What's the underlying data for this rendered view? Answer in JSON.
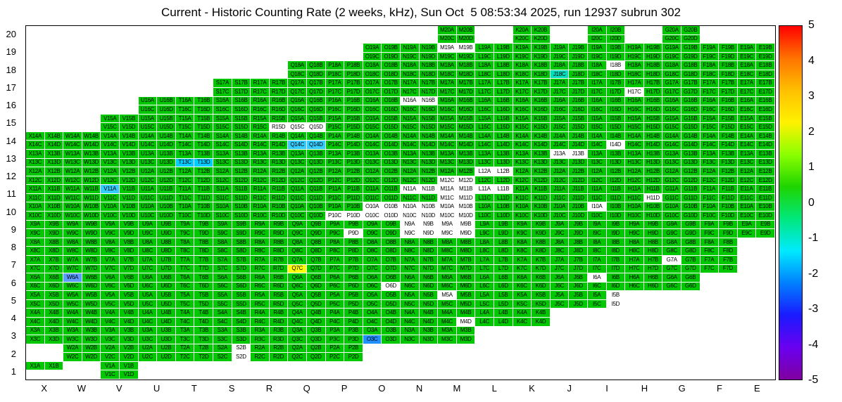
{
  "chart_data": {
    "type": "heatmap",
    "title": "Current - Historic Counting Rate (2 weeks, kHz), Sun Oct  5 08:53:34 2025, run 12937 subrun 302",
    "x_categories": [
      "X",
      "W",
      "V",
      "U",
      "T",
      "S",
      "R",
      "Q",
      "P",
      "O",
      "N",
      "M",
      "L",
      "K",
      "J",
      "I",
      "H",
      "G",
      "F",
      "E"
    ],
    "y_categories": [
      20,
      19,
      18,
      17,
      16,
      15,
      14,
      13,
      12,
      11,
      10,
      9,
      8,
      7,
      6,
      5,
      4,
      3,
      2,
      1
    ],
    "subcell_suffixes": [
      "A",
      "B",
      "C",
      "D"
    ],
    "subcell_layout": "each module cell is split into A (top-left), B (top-right), C (bottom-left), D (bottom-right); label = column letter + row number + suffix",
    "value_scale": {
      "min": -5,
      "max": 5,
      "colorbar_ticks": [
        "5",
        "4",
        "3",
        "2",
        "1",
        "0",
        "-1",
        "-2",
        "-3",
        "-4",
        "-5"
      ]
    },
    "default_value_approx": 0.5,
    "modules_by_row": {
      "20": [
        "M",
        "K",
        "I",
        "G"
      ],
      "19": [
        "O",
        "N",
        "M",
        "L",
        "K",
        "J",
        "I",
        "H",
        "G",
        "F",
        "E"
      ],
      "18": [
        "Q",
        "P",
        "O",
        "N",
        "M",
        "L",
        "K",
        "J",
        "I",
        "H",
        "G",
        "F",
        "E"
      ],
      "17": [
        "S",
        "R",
        "Q",
        "P",
        "O",
        "N",
        "M",
        "L",
        "K",
        "J",
        "I",
        "H",
        "G",
        "F",
        "E"
      ],
      "16": [
        "U",
        "T",
        "S",
        "R",
        "Q",
        "P",
        "O",
        "N",
        "M",
        "L",
        "K",
        "J",
        "I",
        "H",
        "G",
        "F",
        "E"
      ],
      "15": [
        "V",
        "U",
        "T",
        "S",
        "R",
        "Q",
        "P",
        "O",
        "N",
        "M",
        "L",
        "K",
        "J",
        "I",
        "H",
        "G",
        "F",
        "E"
      ],
      "14": [
        "X",
        "W",
        "V",
        "U",
        "T",
        "S",
        "R",
        "Q",
        "P",
        "O",
        "N",
        "M",
        "L",
        "K",
        "J",
        "I",
        "H",
        "G",
        "F",
        "E"
      ],
      "13": [
        "X",
        "W",
        "V",
        "U",
        "T",
        "S",
        "R",
        "Q",
        "P",
        "O",
        "N",
        "M",
        "L",
        "K",
        "J",
        "I",
        "H",
        "G",
        "F",
        "E"
      ],
      "12": [
        "X",
        "W",
        "V",
        "U",
        "T",
        "S",
        "R",
        "Q",
        "P",
        "O",
        "N",
        "M",
        "L",
        "K",
        "J",
        "I",
        "H",
        "G",
        "F",
        "E"
      ],
      "11": [
        "X",
        "W",
        "V",
        "U",
        "T",
        "S",
        "R",
        "Q",
        "P",
        "O",
        "N",
        "M",
        "L",
        "K",
        "J",
        "I",
        "H",
        "G",
        "F",
        "E"
      ],
      "10": [
        "X",
        "W",
        "V",
        "U",
        "T",
        "S",
        "R",
        "Q",
        "P",
        "O",
        "N",
        "M",
        "L",
        "K",
        "J",
        "I",
        "H",
        "G",
        "F",
        "E"
      ],
      "9": [
        "X",
        "W",
        "V",
        "U",
        "T",
        "S",
        "R",
        "Q",
        "P",
        "O",
        "N",
        "M",
        "L",
        "K",
        "J",
        "I",
        "H",
        "G",
        "F",
        "E"
      ],
      "8": [
        "X",
        "W",
        "V",
        "U",
        "T",
        "S",
        "R",
        "Q",
        "P",
        "O",
        "N",
        "M",
        "L",
        "K",
        "J",
        "I",
        "H",
        "G",
        "F"
      ],
      "7": [
        "X",
        "W",
        "V",
        "U",
        "T",
        "S",
        "R",
        "Q",
        "P",
        "O",
        "N",
        "M",
        "L",
        "K",
        "J",
        "I",
        "H",
        "G",
        "F"
      ],
      "6": [
        "X",
        "W",
        "V",
        "U",
        "T",
        "S",
        "R",
        "Q",
        "P",
        "O",
        "N",
        "M",
        "L",
        "K",
        "J",
        "I",
        "H",
        "G"
      ],
      "5": [
        "X",
        "W",
        "V",
        "U",
        "T",
        "S",
        "R",
        "Q",
        "P",
        "O",
        "N",
        "M",
        "L",
        "K",
        "J",
        "I"
      ],
      "4": [
        "X",
        "W",
        "V",
        "U",
        "T",
        "S",
        "R",
        "Q",
        "P",
        "O",
        "N",
        "M",
        "L",
        "K"
      ],
      "3": [
        "X",
        "W",
        "V",
        "U",
        "T",
        "S",
        "R",
        "Q",
        "P",
        "O",
        "N",
        "M"
      ],
      "2": [
        "W",
        "V",
        "U",
        "T",
        "S",
        "R",
        "Q",
        "P"
      ],
      "1": [
        "X",
        "V"
      ]
    },
    "partial_modules": {
      "X1": [
        "A",
        "B"
      ]
    },
    "no_data_subcells": [
      "M19A",
      "M19B",
      "I18B",
      "H17C",
      "N16A",
      "N16B",
      "R15D",
      "Q15C",
      "Q15D",
      "I14D",
      "J13A",
      "J13B",
      "L12A",
      "L12B",
      "M12C",
      "M12D",
      "N11A",
      "N11B",
      "M11A",
      "M11B",
      "M11C",
      "M11D",
      "L11A",
      "L11B",
      "H11D",
      "P10C",
      "P10D",
      "O10A",
      "O10B",
      "O10C",
      "O10D",
      "N10A",
      "N10B",
      "N10C",
      "N10D",
      "M10A",
      "M10B",
      "M10C",
      "M10D",
      "I10A",
      "P9D",
      "N9A",
      "N9B",
      "N9C",
      "N9D",
      "M9A",
      "M9B",
      "M9C",
      "M9D",
      "O6D",
      "I6A",
      "G7A",
      "M5A",
      "I5B",
      "I5D",
      "M4D",
      "S2B",
      "S2D"
    ],
    "special_values": {
      "Q7C": 2.3,
      "T13C": -2.3,
      "T13D": -2.3,
      "Q14C": -2.0,
      "Q14D": -2.0,
      "V11A": -2.0,
      "J18C": -1.0,
      "W6A": -3.0,
      "O3C": -3.2
    }
  },
  "colors": {
    "default_cell": "#00C800",
    "no_data_cell": "#FFFFFF",
    "frame": "#000000",
    "background": "#FFFFFF",
    "special_cells": {
      "T13C": "#00CCFF",
      "T13D": "#00CCFF",
      "Q14C": "#33CCFF",
      "Q14D": "#33CCFF",
      "V11A": "#33CCFF",
      "J18C": "#00DDBB",
      "W6A": "#5C9DFF",
      "Q7C": "#FFFF00",
      "O3C": "#1E90FF"
    },
    "colorbar_gradient_top_to_bottom": [
      "#FF0000",
      "#FF7300",
      "#FFBF00",
      "#FFF200",
      "#8AFF00",
      "#1ED400",
      "#00E87C",
      "#00EAFF",
      "#0080FF",
      "#1A1AFF",
      "#6A00F0",
      "#8000A0"
    ]
  }
}
